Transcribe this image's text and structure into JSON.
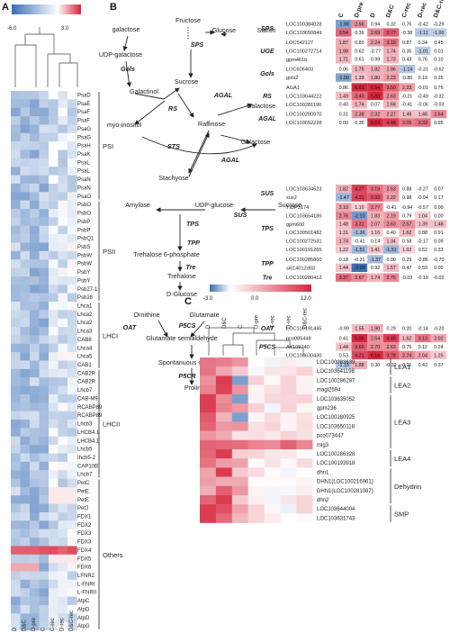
{
  "panels": {
    "a": "A",
    "b": "B",
    "c": "C"
  },
  "heatA": {
    "scale": {
      "min": "-6.0",
      "max": "3.0"
    },
    "columns": [
      "D",
      "D&C",
      "D-pre",
      "C",
      "C-rec",
      "D-rec",
      "D&C-rec"
    ],
    "genes": [
      "PsaD",
      "PsaE",
      "PsaF",
      "PsaF",
      "PsaG",
      "PsaG",
      "PsaH",
      "PsaK",
      "PsaL",
      "PsaL",
      "PsaN",
      "PsaN",
      "PsaO",
      "PsbO",
      "PsbO",
      "PsbP",
      "PsbP",
      "PsbQ1",
      "PsbS",
      "PsbW",
      "PsbW",
      "PsbY",
      "PsbY",
      "Psb27-1",
      "Psb28",
      "Lhca1",
      "Lhca2",
      "Lhca2",
      "Lhca3",
      "CAB8",
      "Lhca4",
      "Lhca5",
      "CAB1",
      "CAB2R",
      "CAB2R",
      "Lhcb7",
      "CAB-M9",
      "RCABP89",
      "RCABP89",
      "Lhcb3",
      "LHCB4.1",
      "LHCB4.1",
      "Lhcb5",
      "Ihcb5-2",
      "CAP10B",
      "Lhcb7",
      "PetC",
      "PetE",
      "PetE",
      "PetJ",
      "FDX1",
      "FDX2",
      "FDX3",
      "FDX3",
      "FDX4",
      "FDX5",
      "FDX6",
      "LFNR2",
      "L-FNRI",
      "L-FNRII",
      "AtpC",
      "AtpD",
      "AtpD",
      "AtpG"
    ],
    "groups": [
      "PSI",
      "PSII",
      "LHCI",
      "LHCII",
      "Others"
    ]
  },
  "pathway": {
    "metabolites": [
      "galactose",
      "UDP-galactose",
      "Fructose",
      "Glucose",
      "Starch",
      "Sucrose",
      "Galactinol",
      "Raffinose",
      "Galactose",
      "myo-inositol",
      "Galactose",
      "Stachyose",
      "Amylose",
      "UDP-glucose",
      "Sucrose",
      "Trehalose 6-phosphate",
      "Trehalose",
      "D-Glucose",
      "Ornithine",
      "Glutamate",
      "Glutamate semialdehyde",
      "Spontanuous cylization",
      "Proline"
    ],
    "enzymes": [
      "SPS",
      "Gols",
      "RS",
      "AGAL",
      "STS",
      "AGAL",
      "SUS",
      "TPS",
      "TPP",
      "Tre",
      "OAT",
      "P5CS",
      "P5CR"
    ]
  },
  "tableB": {
    "columns": [
      "C",
      "D-pre",
      "D",
      "D&C",
      "C-rec",
      "D-rec",
      "D&C-rec"
    ],
    "groups": [
      {
        "name": "SPS",
        "rows": [
          {
            "gene": "LOC100384028",
            "v": [
              "-1.98",
              "2.56",
              "0.94",
              "0.32",
              "0.76",
              "-0.42",
              "-0.29"
            ]
          },
          {
            "gene": "LOC103650849",
            "v": [
              "3.54",
              "0.36",
              "2.69",
              "3.77",
              "-0.38",
              "-1.11",
              "-1.00"
            ]
          }
        ]
      },
      {
        "name": "UGE",
        "rows": [
          {
            "gene": "LOC542127",
            "v": [
              "1.87",
              "0.80",
              "2.24",
              "3.19",
              "0.87",
              "0.34",
              "0.45"
            ]
          },
          {
            "gene": "LOC100272714",
            "v": [
              "1.98",
              "0.62",
              "-0.77",
              "1.74",
              "0.35",
              "-1.01",
              "0.01"
            ]
          },
          {
            "gene": "gpm461b",
            "v": [
              "1.71",
              "0.61",
              "0.99",
              "1.73",
              "0.43",
              "0.76",
              "0.10"
            ]
          }
        ]
      },
      {
        "name": "Gols",
        "rows": [
          {
            "gene": "LOC606403",
            "v": [
              "0.06",
              "1.75",
              "1.82",
              "1.96",
              "-1.14",
              "-0.31",
              "-0.62"
            ]
          },
          {
            "gene": "gols2",
            "v": [
              "-1.90",
              "1.39",
              "1.80",
              "2.23",
              "-0.86",
              "0.19",
              "0.15"
            ]
          }
        ]
      },
      {
        "name": "RS",
        "rows": [
          {
            "gene": "AGA1",
            "v": [
              "0.86",
              "6.61",
              "6.54",
              "3.50",
              "2.23",
              "-0.01",
              "0.75"
            ]
          },
          {
            "gene": "LOC103644222",
            "v": [
              "1.49",
              "3.40",
              "5.83",
              "2.63",
              "-0.21",
              "-0.49",
              "-0.32"
            ]
          },
          {
            "gene": "LOC100281190",
            "v": [
              "0.40",
              "1.74",
              "0.07",
              "1.68",
              "-0.41",
              "-0.06",
              "-0.03"
            ]
          }
        ]
      },
      {
        "name": "AGAL",
        "rows": [
          {
            "gene": "LOC100280970",
            "v": [
              "0.31",
              "2.38",
              "2.32",
              "2.27",
              "1.49",
              "1.48",
              "2.64"
            ]
          },
          {
            "gene": "LOC103652228",
            "v": [
              "0.00",
              "0.36",
              "5.63",
              "4.48",
              "3.05",
              "3.33",
              "0.95"
            ]
          }
        ]
      },
      {
        "name": "SUS",
        "rows": [
          {
            "gene": "LOC103634623",
            "v": [
              "1.82",
              "4.27",
              "3.19",
              "2.53",
              "0.88",
              "-0.27",
              "0.07"
            ]
          },
          {
            "gene": "sus2",
            "v": [
              "-1.47",
              "4.31",
              "3.93",
              "2.22",
              "0.98",
              "-0.04",
              "0.17"
            ]
          }
        ]
      },
      {
        "name": "TPS",
        "rows": [
          {
            "gene": "TIDP3174",
            "v": [
              "2.10",
              "1.10",
              "2.77",
              "-0.41",
              "-0.94",
              "-0.57",
              "0.00"
            ]
          },
          {
            "gene": "LOC103654185",
            "v": [
              "2.76",
              "-2.10",
              "1.83",
              "2.19",
              "0.79",
              "1.04",
              "0.00"
            ]
          },
          {
            "gene": "gpm600",
            "v": [
              "1.48",
              "3.31",
              "2.07",
              "2.63",
              "2.57",
              "1.39",
              "1.48"
            ]
          },
          {
            "gene": "LOC100501482",
            "v": [
              "1.31",
              "-1.36",
              "1.16",
              "0.40",
              "1.62",
              "0.88",
              "0.91"
            ]
          },
          {
            "gene": "LOC100272531",
            "v": [
              "1.74",
              "-0.41",
              "0.14",
              "1.34",
              "0.58",
              "-0.17",
              "0.09"
            ]
          },
          {
            "gene": "LOC100191265",
            "v": [
              "1.22",
              "-1.51",
              "1.41",
              "-1.51",
              "1.02",
              "0.52",
              "0.33"
            ]
          }
        ]
      },
      {
        "name": "TPP",
        "rows": [
          {
            "gene": "LOC100285860",
            "v": [
              "0.18",
              "-0.21",
              "-1.37",
              "0.90",
              "0.29",
              "-0.86",
              "-0.70"
            ]
          },
          {
            "gene": "si614012d03",
            "v": [
              "1.44",
              "-3.09",
              "0.92",
              "1.57",
              "0.47",
              "0.59",
              "0.00"
            ]
          }
        ]
      },
      {
        "name": "Tre",
        "rows": [
          {
            "gene": "LOC100280412",
            "v": [
              "3.37",
              "2.67",
              "1.74",
              "2.76",
              "-0.03",
              "-0.19",
              "-0.02"
            ]
          }
        ]
      },
      {
        "name": "OAT",
        "rows": [
          {
            "gene": "LOC100191445",
            "v": [
              "-0.99",
              "1.55",
              "1.90",
              "0.29",
              "0.20",
              "-0.14",
              "-0.20"
            ]
          }
        ]
      },
      {
        "name": "P5CS",
        "rows": [
          {
            "gene": "pco085448",
            "v": [
              "0.41",
              "5.06",
              "2.54",
              "4.48",
              "1.62",
              "3.13",
              "2.02"
            ]
          },
          {
            "gene": "AY109740",
            "v": [
              "1.44",
              "3.66",
              "2.70",
              "2.63",
              "0.75",
              "0.12",
              "0.24"
            ]
          },
          {
            "gene": "LOC103630430",
            "v": [
              "0.53",
              "4.21",
              "6.16",
              "3.78",
              "2.74",
              "2.04",
              "1.25"
            ]
          }
        ]
      },
      {
        "name": "P5CR",
        "rows": [
          {
            "gene": "p5cr",
            "v": [
              "-1.15",
              "1.88",
              "0.30",
              "-0.32",
              "0.01",
              "0.42",
              "0.37"
            ]
          }
        ]
      }
    ]
  },
  "scaleB": {
    "min": "-3.0",
    "mid": "0.0",
    "max": "12.0"
  },
  "heatC": {
    "columns": [
      "D",
      "D&C",
      "C",
      "D-pre",
      "C-rec",
      "D-rec",
      "D&C-rec"
    ],
    "genes": [
      "LOC100283639",
      "LOC103641198",
      "LOC100286287",
      "magi2594",
      "LOC103635052",
      "gpm236",
      "LOC100280925",
      "LOC103650118",
      "pco073447",
      "mlg3",
      "LOC100286328",
      "LOC100193918",
      "dhn1",
      "DHN1(LOC100216961)",
      "DHN1(LOC100281087)",
      "dhn2",
      "LOC103644004",
      "LOC103631743"
    ],
    "groups": [
      "LEA1",
      "LEA2",
      "LEA3",
      "LEA4",
      "Dehydrin",
      "SMP"
    ]
  },
  "colors": {
    "blue": "#3b6fb6",
    "white": "#ffffff",
    "red": "#d7263d"
  }
}
